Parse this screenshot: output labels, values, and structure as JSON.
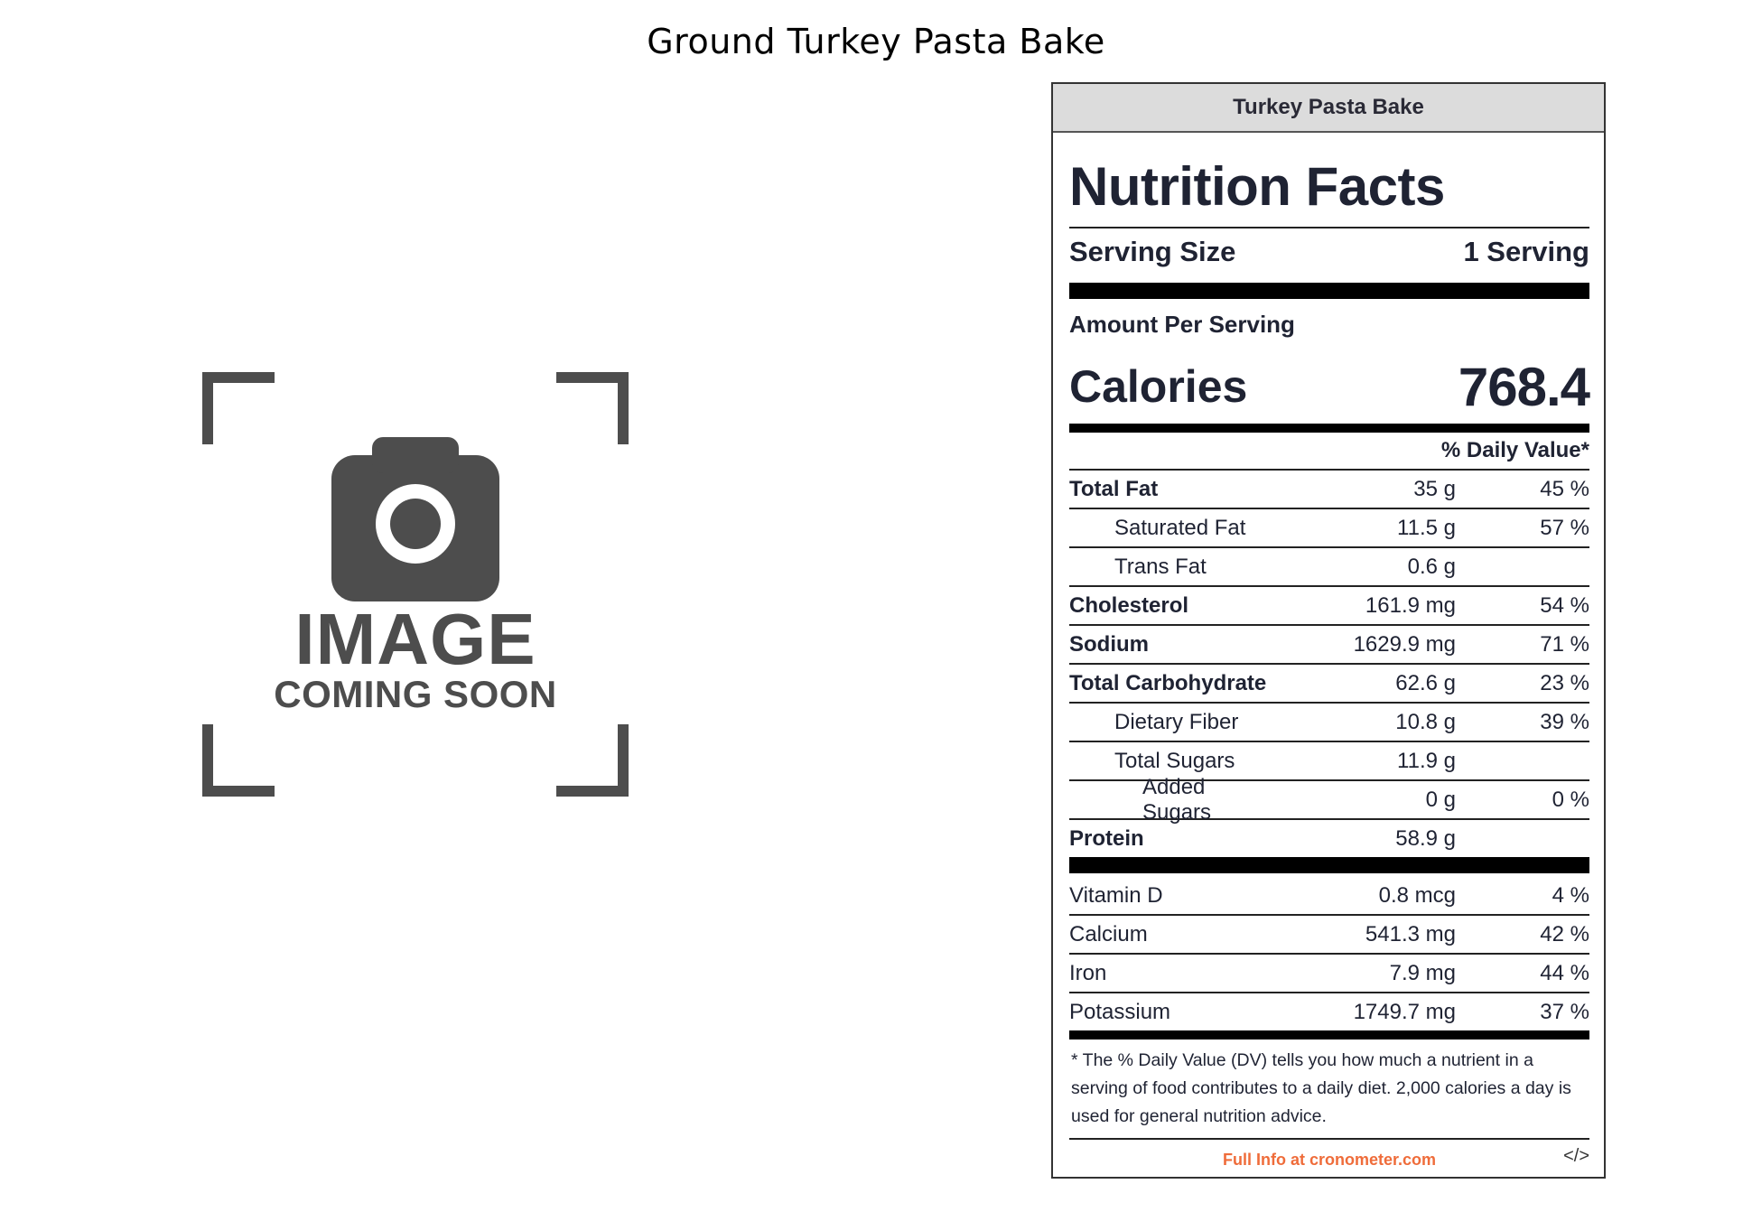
{
  "page": {
    "title": "Ground Turkey Pasta Bake"
  },
  "placeholder": {
    "line1": "IMAGE",
    "line2": "COMING SOON",
    "icon": "camera-icon"
  },
  "label": {
    "header": "Turkey Pasta Bake",
    "title": "Nutrition Facts",
    "serving_size_label": "Serving Size",
    "serving_size_value": "1 Serving",
    "amount_per_serving": "Amount Per Serving",
    "calories_label": "Calories",
    "calories_value": "768.4",
    "dv_header": "% Daily Value*",
    "nutrients": [
      {
        "name": "Total Fat",
        "amount": "35 g",
        "dv": "45 %"
      },
      {
        "name": "Saturated Fat",
        "amount": "11.5 g",
        "dv": "57 %"
      },
      {
        "name": "Trans Fat",
        "amount": "0.6 g",
        "dv": ""
      },
      {
        "name": "Cholesterol",
        "amount": "161.9 mg",
        "dv": "54 %"
      },
      {
        "name": "Sodium",
        "amount": "1629.9 mg",
        "dv": "71 %"
      },
      {
        "name": "Total Carbohydrate",
        "amount": "62.6 g",
        "dv": "23 %"
      },
      {
        "name": "Dietary Fiber",
        "amount": "10.8 g",
        "dv": "39 %"
      },
      {
        "name": "Total Sugars",
        "amount": "11.9 g",
        "dv": ""
      },
      {
        "name": "Added Sugars",
        "amount": "0 g",
        "dv": "0 %"
      },
      {
        "name": "Protein",
        "amount": "58.9 g",
        "dv": ""
      }
    ],
    "vitamins": [
      {
        "name": "Vitamin D",
        "amount": "0.8 mcg",
        "dv": "4 %"
      },
      {
        "name": "Calcium",
        "amount": "541.3 mg",
        "dv": "42 %"
      },
      {
        "name": "Iron",
        "amount": "7.9 mg",
        "dv": "44 %"
      },
      {
        "name": "Potassium",
        "amount": "1749.7 mg",
        "dv": "37 %"
      }
    ],
    "footnote": "* The % Daily Value (DV) tells you how much a nutrient in a serving of food contributes to a daily diet. 2,000 calories a day is used for general nutrition advice.",
    "footer_link": "Full Info at cronometer.com",
    "embed_code": "</>",
    "link_color": "#ef6c3a"
  }
}
